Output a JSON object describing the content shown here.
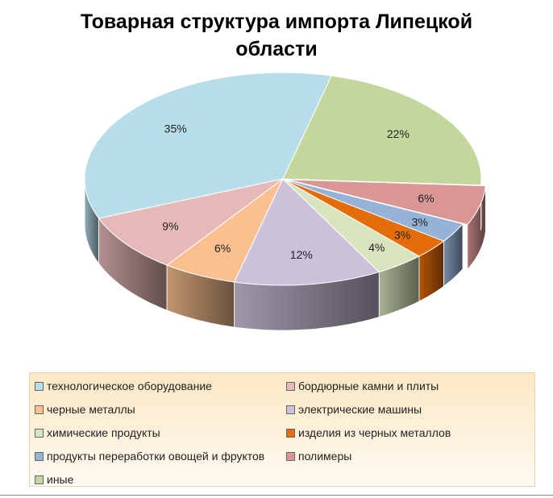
{
  "chart_data": {
    "type": "pie",
    "title": "Товарная структура импорта Липецкой области",
    "slices": [
      {
        "label": "технологическое оборудование",
        "value": 35,
        "value_label": "35%",
        "color": "#b7dde8"
      },
      {
        "label": "бордюрные камни и плиты",
        "value": 9,
        "value_label": "9%",
        "color": "#e6b9b8"
      },
      {
        "label": "черные металлы",
        "value": 6,
        "value_label": "6%",
        "color": "#fac090"
      },
      {
        "label": "электрические машины",
        "value": 12,
        "value_label": "12%",
        "color": "#ccc1da"
      },
      {
        "label": "химические продукты",
        "value": 4,
        "value_label": "4%",
        "color": "#d7e4bd"
      },
      {
        "label": "изделия из черных металлов",
        "value": 3,
        "value_label": "3%",
        "color": "#e46c0a"
      },
      {
        "label": "продукты переработки овощей и фруктов",
        "value": 3,
        "value_label": "3%",
        "color": "#95b3d7"
      },
      {
        "label": "полимеры",
        "value": 6,
        "value_label": "6%",
        "color": "#d99694"
      },
      {
        "label": "иные",
        "value": 22,
        "value_label": "22%",
        "color": "#c3d69b"
      }
    ],
    "legend_position": "bottom"
  }
}
